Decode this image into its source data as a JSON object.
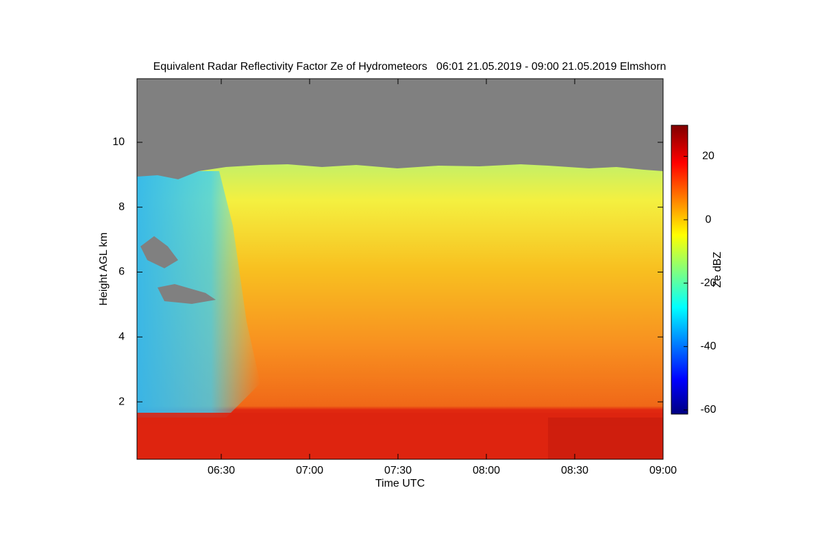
{
  "chart_data": {
    "type": "heatmap",
    "title": "Equivalent Radar Reflectivity Factor Ze of Hydrometeors   06:01 21.05.2019 - 09:00 21.05.2019 Elmshorn",
    "xlabel": "Time UTC",
    "ylabel": "Height AGL km",
    "colorbar_label": "Ze dBZ",
    "xlim": [
      361.4,
      540
    ],
    "xticks": [
      {
        "value": 390,
        "label": "06:30"
      },
      {
        "value": 420,
        "label": "07:00"
      },
      {
        "value": 450,
        "label": "07:30"
      },
      {
        "value": 480,
        "label": "08:00"
      },
      {
        "value": 510,
        "label": "08:30"
      },
      {
        "value": 540,
        "label": "09:00"
      }
    ],
    "ylim": [
      0.23,
      11.96
    ],
    "yticks": [
      2,
      4,
      6,
      8,
      10
    ],
    "clim": [
      -61.3,
      29.8
    ],
    "cticks": [
      -60,
      -40,
      -20,
      0,
      20
    ]
  }
}
